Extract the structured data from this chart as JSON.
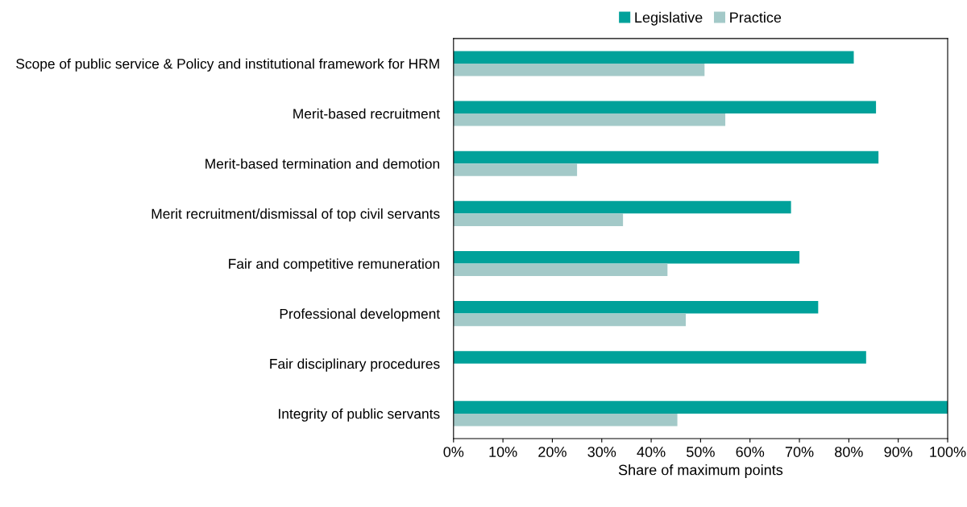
{
  "chart_data": {
    "type": "bar",
    "orientation": "horizontal",
    "xlabel": "Share of maximum points",
    "categories": [
      "Scope of public service & Policy and institutional framework for HRM",
      "Merit-based recruitment",
      "Merit-based termination and demotion",
      "Merit recruitment/dismissal of top civil servants",
      "Fair and competitive remuneration",
      "Professional development",
      "Fair disciplinary procedures",
      "Integrity of public servants"
    ],
    "series": [
      {
        "name": "Legislative",
        "color": "#00a19a",
        "values": [
          81,
          85.5,
          86,
          68.3,
          70,
          73.8,
          83.5,
          100
        ]
      },
      {
        "name": "Practice",
        "color": "#a3c9c8",
        "values": [
          50.8,
          55,
          25,
          34.3,
          43.3,
          47,
          null,
          45.3
        ]
      }
    ],
    "xlim": [
      0,
      100
    ],
    "xticks": [
      {
        "value": 0,
        "label": "0%"
      },
      {
        "value": 10,
        "label": "10%"
      },
      {
        "value": 20,
        "label": "20%"
      },
      {
        "value": 30,
        "label": "30%"
      },
      {
        "value": 40,
        "label": "40%"
      },
      {
        "value": 50,
        "label": "50%"
      },
      {
        "value": 60,
        "label": "60%"
      },
      {
        "value": 70,
        "label": "70%"
      },
      {
        "value": 80,
        "label": "80%"
      },
      {
        "value": 90,
        "label": "90%"
      },
      {
        "value": 100,
        "label": "100%"
      }
    ],
    "grid": false,
    "legend": "top"
  }
}
